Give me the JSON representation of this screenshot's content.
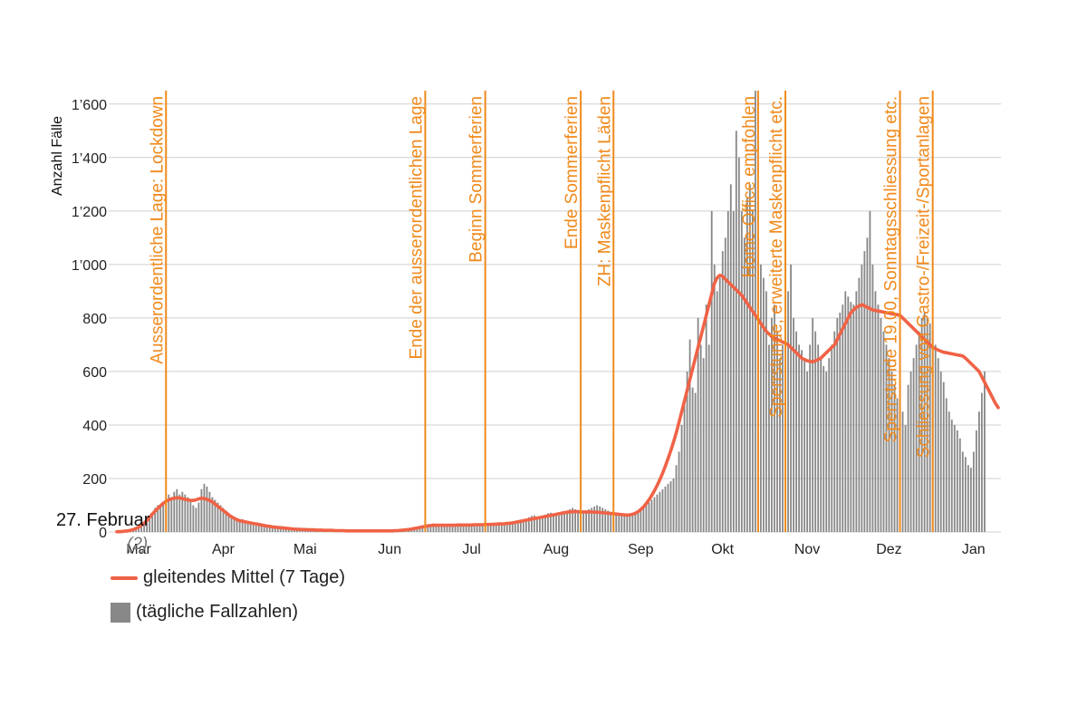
{
  "chart_data": {
    "type": "bar",
    "ylabel": "Anzahl Fälle",
    "ylim": [
      0,
      1650
    ],
    "y_ticks": [
      {
        "value": 0,
        "label": "0"
      },
      {
        "value": 200,
        "label": "200"
      },
      {
        "value": 400,
        "label": "400"
      },
      {
        "value": 600,
        "label": "600"
      },
      {
        "value": 800,
        "label": "800"
      },
      {
        "value": 1000,
        "label": "1’000"
      },
      {
        "value": 1200,
        "label": "1’200"
      },
      {
        "value": 1400,
        "label": "1’400"
      },
      {
        "value": 1600,
        "label": "1’600"
      }
    ],
    "grid": true,
    "x_start": "2020-02-24",
    "x_end": "2021-01-16",
    "x_ticks": [
      {
        "date": "2020-03-01",
        "label": "Mar"
      },
      {
        "date": "2020-04-01",
        "label": "Apr"
      },
      {
        "date": "2020-05-01",
        "label": "Mai"
      },
      {
        "date": "2020-06-01",
        "label": "Jun"
      },
      {
        "date": "2020-07-01",
        "label": "Jul"
      },
      {
        "date": "2020-08-01",
        "label": "Aug"
      },
      {
        "date": "2020-09-01",
        "label": "Sep"
      },
      {
        "date": "2020-10-01",
        "label": "Okt"
      },
      {
        "date": "2020-11-01",
        "label": "Nov"
      },
      {
        "date": "2020-12-01",
        "label": "Dez"
      },
      {
        "date": "2021-01-01",
        "label": "Jan"
      }
    ],
    "bar_start": "2020-02-27",
    "daily_cases": [
      2,
      1,
      3,
      2,
      4,
      5,
      6,
      8,
      12,
      18,
      25,
      40,
      55,
      70,
      90,
      100,
      95,
      110,
      120,
      140,
      130,
      150,
      160,
      140,
      150,
      140,
      130,
      120,
      100,
      90,
      110,
      160,
      180,
      170,
      150,
      130,
      120,
      110,
      100,
      90,
      80,
      70,
      60,
      55,
      50,
      45,
      48,
      42,
      40,
      38,
      35,
      32,
      30,
      28,
      26,
      24,
      25,
      22,
      20,
      18,
      16,
      15,
      14,
      13,
      12,
      11,
      10,
      10,
      9,
      9,
      8,
      8,
      8,
      7,
      7,
      7,
      6,
      6,
      6,
      5,
      5,
      5,
      5,
      4,
      4,
      4,
      4,
      4,
      4,
      3,
      3,
      3,
      3,
      4,
      3,
      3,
      3,
      4,
      4,
      3,
      3,
      4,
      4,
      5,
      5,
      6,
      6,
      8,
      10,
      12,
      14,
      16,
      18,
      20,
      24,
      28,
      32,
      30,
      28,
      26,
      24,
      22,
      20,
      22,
      24,
      26,
      28,
      30,
      28,
      26,
      24,
      25,
      26,
      28,
      30,
      28,
      26,
      25,
      26,
      28,
      30,
      32,
      34,
      36,
      38,
      40,
      42,
      44,
      46,
      48,
      50,
      55,
      60,
      62,
      58,
      55,
      60,
      65,
      70,
      72,
      68,
      65,
      62,
      70,
      75,
      80,
      85,
      90,
      85,
      80,
      78,
      75,
      80,
      85,
      90,
      95,
      100,
      95,
      90,
      85,
      80,
      75,
      70,
      68,
      65,
      60,
      62,
      64,
      66,
      68,
      70,
      75,
      80,
      90,
      100,
      110,
      120,
      130,
      140,
      150,
      160,
      170,
      180,
      190,
      200,
      250,
      300,
      400,
      500,
      600,
      720,
      540,
      520,
      800,
      700,
      650,
      850,
      700,
      1200,
      1000,
      900,
      950,
      1050,
      1100,
      1200,
      1300,
      1200,
      1500,
      1400,
      1200,
      1100,
      1250,
      1300,
      1200,
      1650,
      1100,
      1000,
      950,
      900,
      700,
      800,
      850,
      750,
      650,
      700,
      800,
      900,
      1000,
      800,
      750,
      700,
      680,
      650,
      600,
      700,
      800,
      750,
      700,
      650,
      620,
      600,
      650,
      700,
      750,
      800,
      820,
      850,
      900,
      880,
      860,
      850,
      900,
      950,
      1000,
      1050,
      1100,
      1200,
      1000,
      900,
      850,
      800,
      750,
      700,
      650,
      600,
      550,
      500,
      480,
      450,
      400,
      550,
      600,
      650,
      700,
      750,
      800,
      820,
      800,
      780,
      750,
      700,
      650,
      600,
      560,
      500,
      450,
      420,
      400,
      380,
      350,
      300,
      280,
      250,
      240,
      300,
      380,
      450,
      520,
      600
    ],
    "series": [
      {
        "name": "gleitendes Mittel (7 Tage)",
        "type": "line",
        "color": "#f06246",
        "values": [
          1,
          1,
          2,
          3,
          4,
          6,
          9,
          13,
          18,
          25,
          33,
          43,
          55,
          67,
          78,
          88,
          98,
          107,
          115,
          120,
          124,
          126,
          128,
          127,
          125,
          122,
          120,
          118,
          118,
          120,
          124,
          126,
          125,
          122,
          118,
          112,
          104,
          96,
          88,
          80,
          72,
          64,
          57,
          51,
          46,
          42,
          40,
          38,
          36,
          34,
          32,
          30,
          28,
          26,
          24,
          22,
          21,
          19,
          18,
          17,
          16,
          15,
          14,
          13,
          12,
          11,
          10,
          10,
          9,
          9,
          8,
          8,
          8,
          7,
          7,
          7,
          6,
          6,
          6,
          6,
          5,
          5,
          5,
          5,
          4,
          4,
          4,
          4,
          4,
          4,
          4,
          4,
          4,
          4,
          4,
          4,
          4,
          4,
          4,
          4,
          4,
          4,
          5,
          5,
          6,
          7,
          8,
          9,
          11,
          13,
          15,
          17,
          19,
          21,
          23,
          24,
          25,
          25,
          25,
          25,
          25,
          25,
          25,
          25,
          25,
          26,
          26,
          26,
          26,
          26,
          26,
          27,
          27,
          27,
          27,
          28,
          28,
          28,
          29,
          29,
          30,
          30,
          31,
          32,
          33,
          34,
          36,
          38,
          40,
          42,
          44,
          46,
          48,
          50,
          52,
          54,
          56,
          58,
          60,
          62,
          64,
          66,
          68,
          70,
          72,
          74,
          75,
          76,
          76,
          76,
          75,
          75,
          75,
          75,
          75,
          74,
          74,
          73,
          72,
          71,
          70,
          69,
          68,
          67,
          66,
          65,
          64,
          63,
          64,
          66,
          70,
          76,
          84,
          94,
          106,
          120,
          136,
          154,
          174,
          196,
          220,
          246,
          274,
          304,
          336,
          370,
          410,
          450,
          490,
          530,
          570,
          610,
          650,
          690,
          730,
          770,
          810,
          850,
          890,
          930,
          950,
          960,
          955,
          945,
          935,
          925,
          915,
          905,
          895,
          885,
          870,
          855,
          840,
          825,
          810,
          795,
          780,
          765,
          750,
          740,
          730,
          725,
          720,
          715,
          710,
          705,
          700,
          690,
          680,
          670,
          660,
          650,
          645,
          640,
          638,
          636,
          640,
          645,
          650,
          660,
          670,
          680,
          690,
          700,
          720,
          740,
          760,
          780,
          800,
          820,
          830,
          840,
          845,
          850,
          845,
          840,
          835,
          830,
          828,
          826,
          824,
          822,
          820,
          818,
          816,
          814,
          812,
          810,
          800,
          790,
          780,
          770,
          760,
          750,
          740,
          730,
          720,
          710,
          700,
          690,
          685,
          680,
          676,
          672,
          670,
          668,
          666,
          664,
          662,
          660,
          658,
          650,
          640,
          630,
          620,
          610,
          600,
          580,
          560,
          540,
          520,
          500,
          480,
          465
        ]
      },
      {
        "name": "(tägliche Fallzahlen)",
        "type": "bar",
        "color": "#888888"
      }
    ],
    "events": [
      {
        "date": "2020-03-16",
        "label": "Ausserordentliche Lage: Lockdown"
      },
      {
        "date": "2020-06-19",
        "label": "Ende der ausserordentlichen Lage"
      },
      {
        "date": "2020-07-11",
        "label": "Beginn Sommerferien"
      },
      {
        "date": "2020-08-15",
        "label": "Ende Sommerferien"
      },
      {
        "date": "2020-08-27",
        "label": "ZH: Maskenpflicht Läden"
      },
      {
        "date": "2020-10-19",
        "label": "Home-Office empfohlen"
      },
      {
        "date": "2020-10-29",
        "label": "Sperrstunde, erweiterte Maskenpflicht etc."
      },
      {
        "date": "2020-12-10",
        "label": "Sperrstunde 19.00, Sonntagsschliessung etc."
      },
      {
        "date": "2020-12-22",
        "label": "Schliessung von Gastro-/Freizeit-/Sportanlagen"
      }
    ],
    "event_color": "#f08a1c",
    "start_annotation": {
      "label": "27. Februar",
      "value_label": "(2)"
    }
  }
}
